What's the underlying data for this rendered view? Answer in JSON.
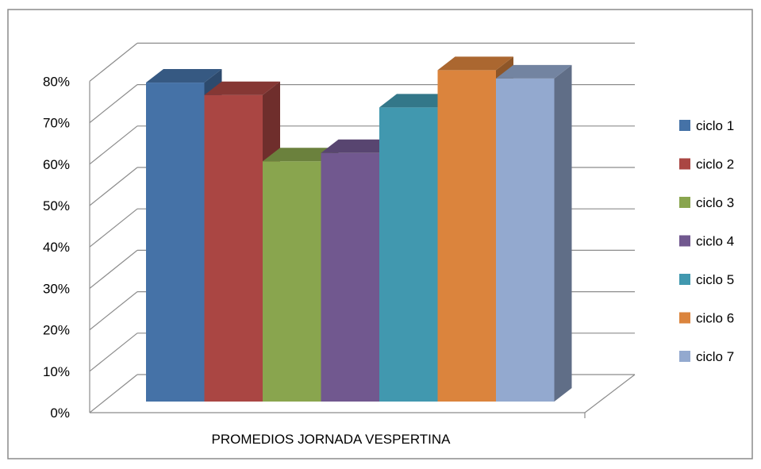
{
  "chart_data": {
    "type": "bar",
    "categories": [
      "PROMEDIOS JORNADA VESPERTINA"
    ],
    "xlabel": "",
    "ylabel": "",
    "ylim": [
      0,
      0.8
    ],
    "y_ticks": [
      "0%",
      "10%",
      "20%",
      "30%",
      "40%",
      "50%",
      "60%",
      "70%",
      "80%"
    ],
    "grid": true,
    "legend_position": "right",
    "three_d": true,
    "series": [
      {
        "name": "ciclo 1",
        "values": [
          0.77
        ],
        "color": "#4572A7"
      },
      {
        "name": "ciclo 2",
        "values": [
          0.74
        ],
        "color": "#AA4643"
      },
      {
        "name": "ciclo 3",
        "values": [
          0.58
        ],
        "color": "#89A54E"
      },
      {
        "name": "ciclo 4",
        "values": [
          0.6
        ],
        "color": "#71588F"
      },
      {
        "name": "ciclo 5",
        "values": [
          0.71
        ],
        "color": "#4198AF"
      },
      {
        "name": "ciclo 6",
        "values": [
          0.8
        ],
        "color": "#DB843D"
      },
      {
        "name": "ciclo 7",
        "values": [
          0.78
        ],
        "color": "#93A9CF"
      }
    ]
  }
}
